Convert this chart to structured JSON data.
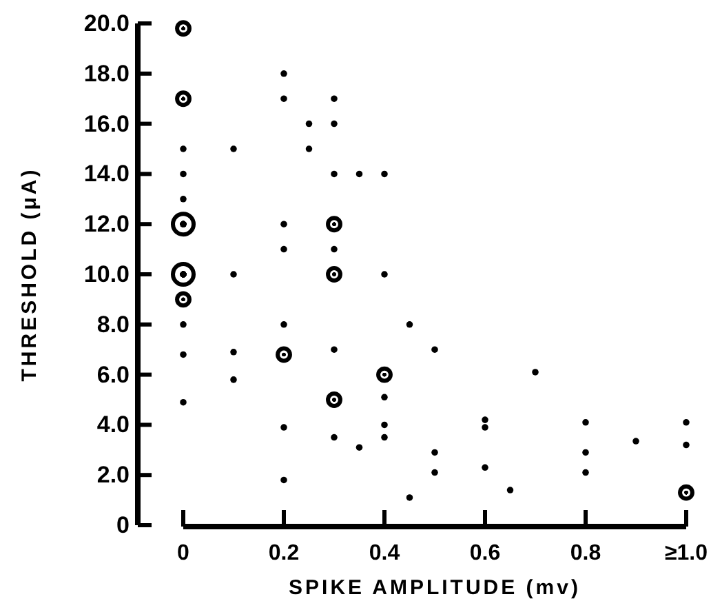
{
  "chart_data": {
    "type": "bubble",
    "xlabel": "SPIKE AMPLITUDE (mv)",
    "ylabel": "THRESHOLD (μA)",
    "color": "#000000",
    "xlim": [
      0,
      1
    ],
    "xticks": [
      0,
      0.2,
      0.4,
      0.6,
      0.8,
      {
        "value": 1,
        "label": "≥1.0"
      }
    ],
    "ylim": [
      0,
      20
    ],
    "yticks": [
      0,
      {
        "value": 2,
        "label": "2.0"
      },
      {
        "value": 4,
        "label": "4.0"
      },
      {
        "value": 6,
        "label": "6.0"
      },
      {
        "value": 8,
        "label": "8.0"
      },
      {
        "value": 10,
        "label": "10.0"
      },
      {
        "value": 12,
        "label": "12.0"
      },
      {
        "value": 14,
        "label": "14.0"
      },
      {
        "value": 16,
        "label": "16.0"
      },
      {
        "value": 18,
        "label": "18.0"
      },
      {
        "value": 20,
        "label": "20.0"
      }
    ],
    "x": [
      0,
      0.2,
      0,
      0.2,
      0.3,
      0.25,
      0.3,
      0,
      0.1,
      0.25,
      0,
      0.3,
      0.35,
      0.4,
      0,
      0,
      0.2,
      0.3,
      0.2,
      0.3,
      0,
      0.1,
      0.3,
      0.4,
      0,
      0,
      0.2,
      0,
      0.1,
      0.2,
      0.3,
      0.1,
      0.4,
      0,
      0.3,
      0.4,
      0.2,
      0.3,
      0.35,
      0.4,
      0.4,
      0.2,
      0.45,
      0.5,
      0.7,
      0.5,
      0.5,
      0.45,
      0.6,
      0.6,
      0.6,
      0.65,
      0.8,
      0.8,
      0.8,
      0.9,
      1,
      1,
      1
    ],
    "values": [
      19.8,
      18,
      17,
      17,
      17,
      16,
      16,
      15,
      15,
      15,
      14,
      14,
      14,
      14,
      13,
      12,
      12,
      12,
      11,
      11,
      10,
      10,
      10,
      10,
      9,
      8,
      8,
      6.8,
      6.9,
      6.8,
      7,
      5.8,
      6,
      4.9,
      5,
      5.1,
      3.9,
      3.5,
      3.1,
      4,
      3.5,
      1.8,
      8,
      7,
      6.1,
      2.9,
      2.1,
      1.1,
      4.2,
      3.9,
      2.3,
      1.4,
      4.1,
      2.9,
      2.1,
      3.35,
      4.1,
      3.2,
      1.3
    ],
    "sizes": [
      0.44,
      0.07,
      0.44,
      0.07,
      0.07,
      0.07,
      0.07,
      0.07,
      0.07,
      0.07,
      0.07,
      0.07,
      0.07,
      0.07,
      0.07,
      1,
      0.07,
      0.44,
      0.07,
      0.07,
      1,
      0.07,
      0.44,
      0.07,
      0.44,
      0.07,
      0.07,
      0.07,
      0.07,
      0.44,
      0.07,
      0.07,
      0.44,
      0.07,
      0.44,
      0.07,
      0.07,
      0.07,
      0.07,
      0.07,
      0.07,
      0.07,
      0.07,
      0.07,
      0.07,
      0.07,
      0.07,
      0.07,
      0.07,
      0.07,
      0.07,
      0.07,
      0.07,
      0.07,
      0.07,
      0.07,
      0.07,
      0.07,
      0.44
    ]
  }
}
